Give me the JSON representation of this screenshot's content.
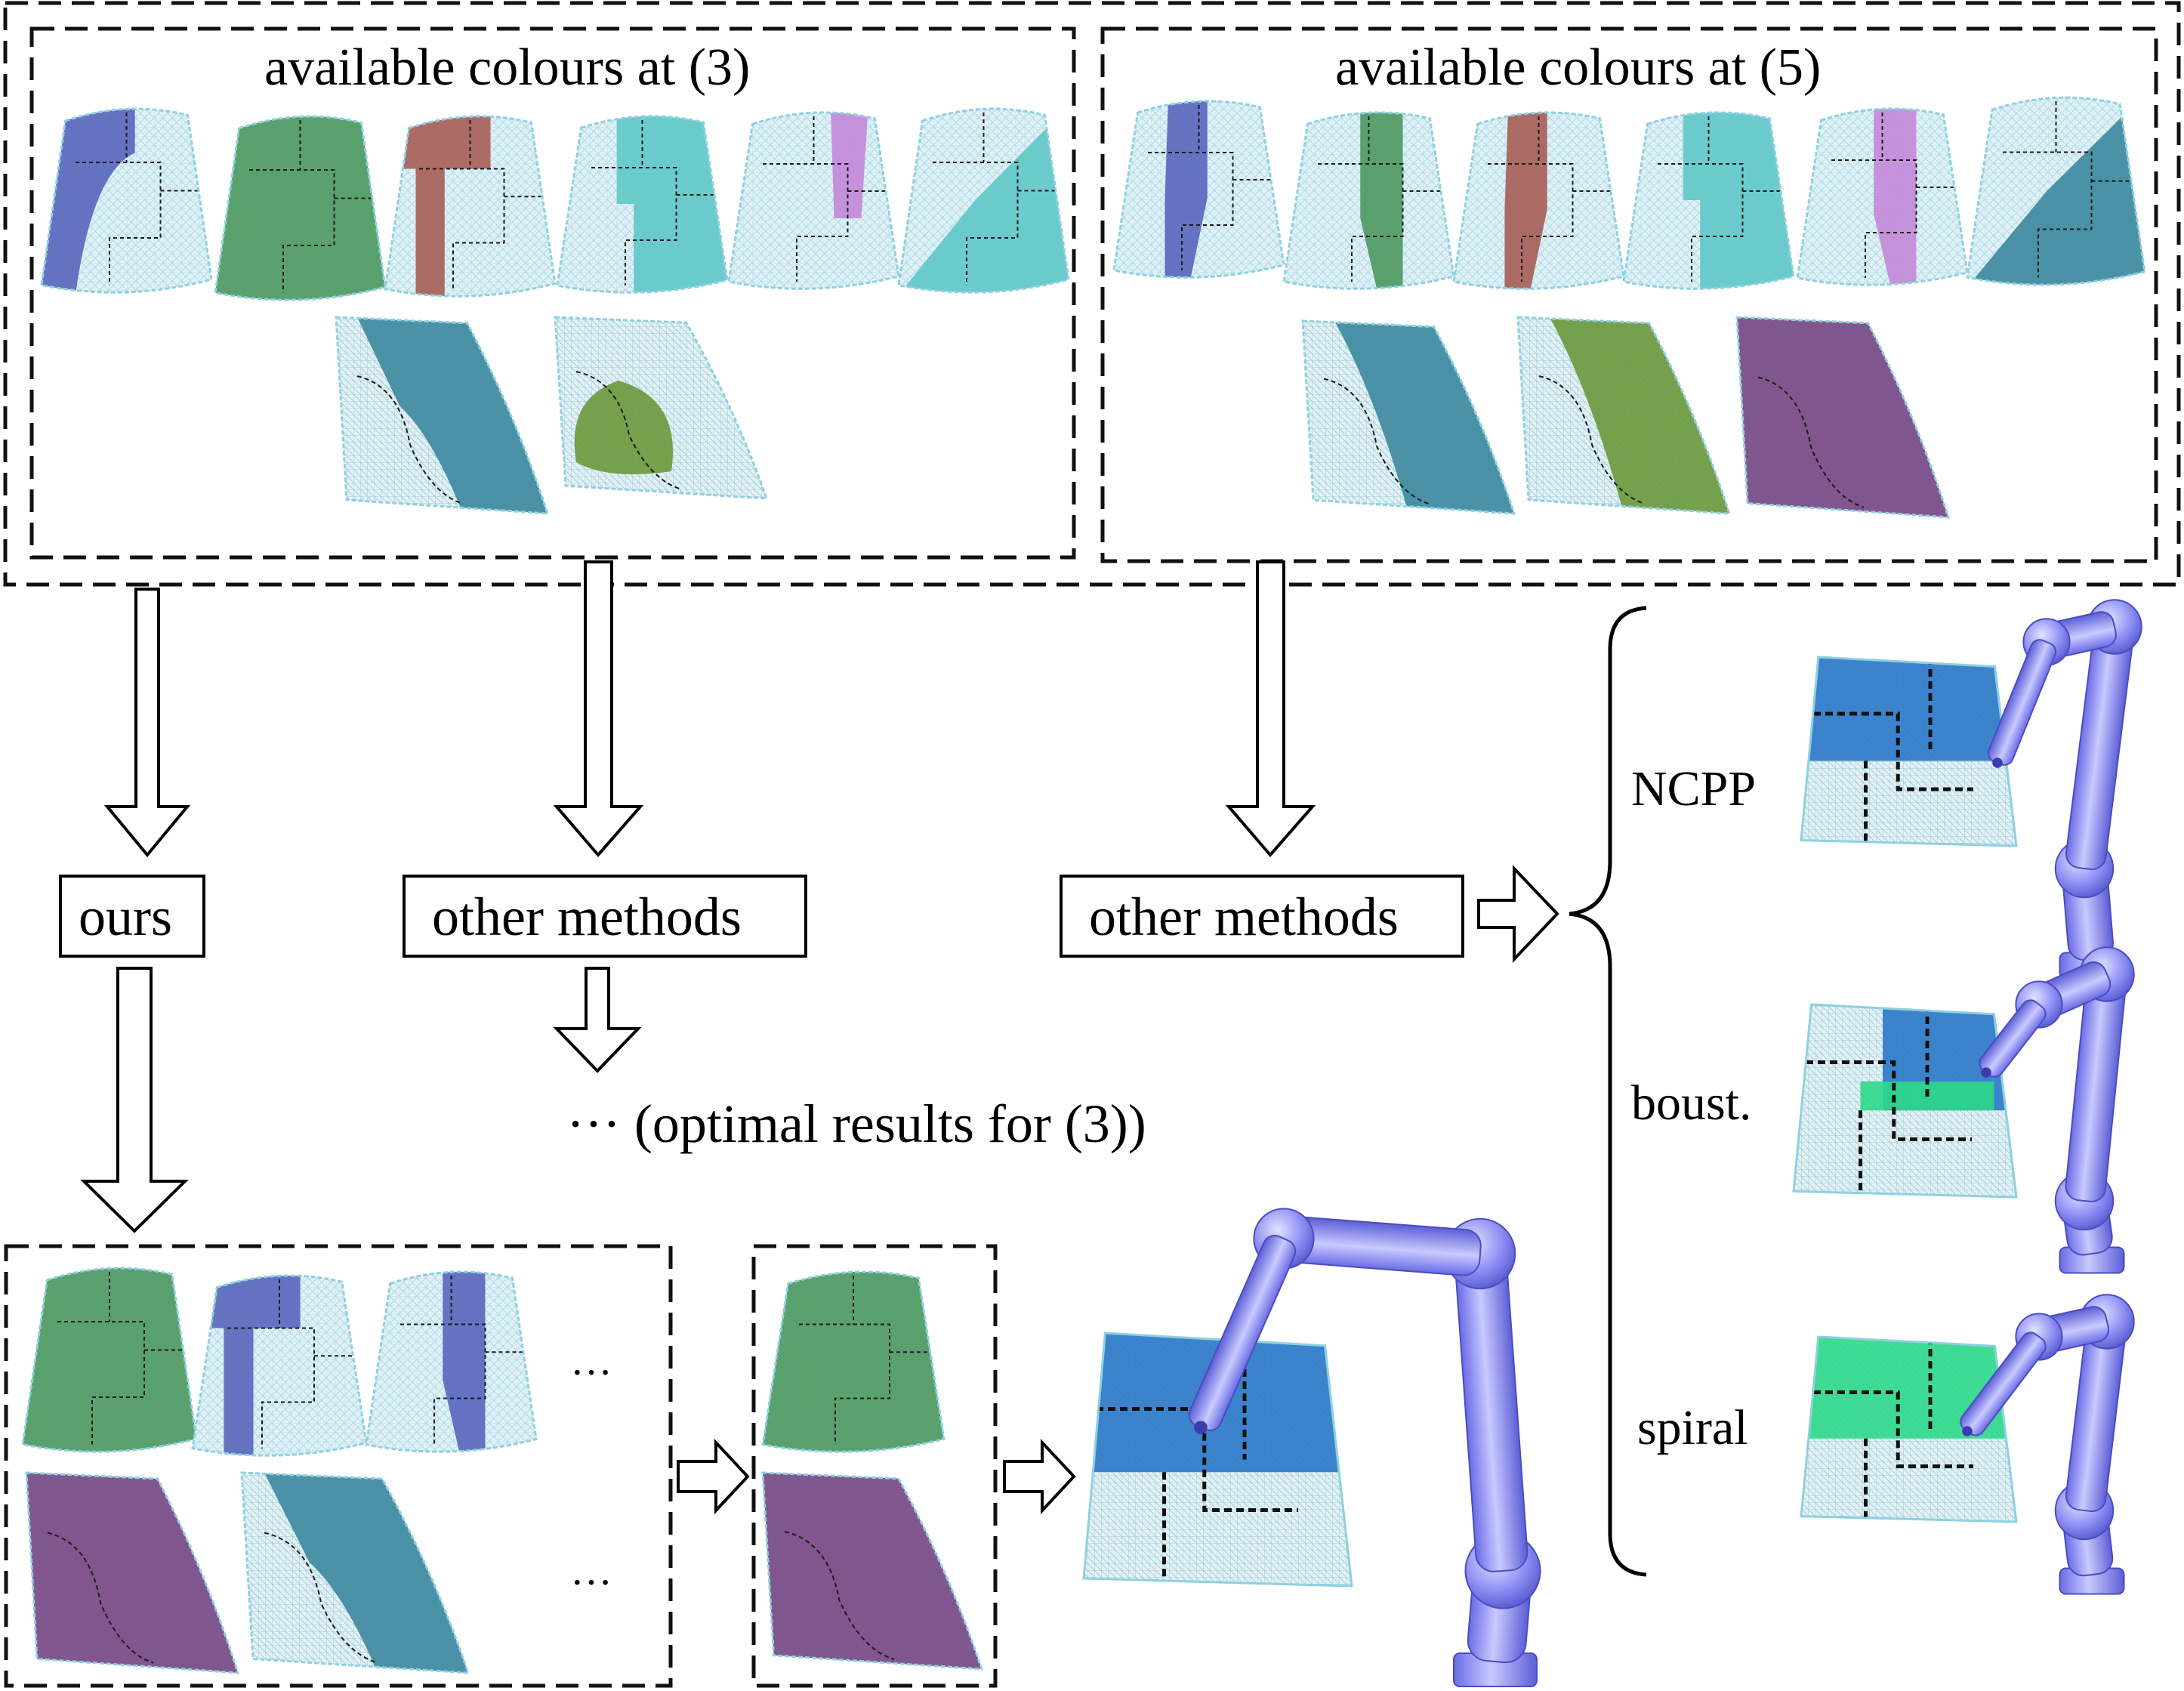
{
  "titles": {
    "colours_3": "available colours at  (3)",
    "colours_5": "available colours at  (5)"
  },
  "boxes": {
    "ours": "ours",
    "other_methods_left": "other methods",
    "other_methods_right": "other methods"
  },
  "notes": {
    "optimal": "··· (optimal results for (3))",
    "ellipsis": "···"
  },
  "methods": {
    "ncpp": "NCPP",
    "boust": "boust.",
    "spiral": "spiral"
  },
  "colors": {
    "blue": "#5a68bd",
    "green": "#4f9a62",
    "red": "#a86058",
    "cyan": "#62c8c8",
    "purple": "#c38ad8",
    "teal": "#3f8aa0",
    "olive": "#6e9a3e",
    "plum": "#7a4a86",
    "mesh": "#dfeef4",
    "mesh_line": "#8fd0e0",
    "robot": "#8a8cf2",
    "robot_dark": "#5d5fd0",
    "robot_light": "#c5c6ff",
    "cover_blue": "#2a78c8",
    "cover_green": "#2ed88a"
  },
  "icons": [
    "down-arrow-icon",
    "right-arrow-icon",
    "robot-arm-icon",
    "curly-brace-icon",
    "mesh-patch-icon"
  ]
}
